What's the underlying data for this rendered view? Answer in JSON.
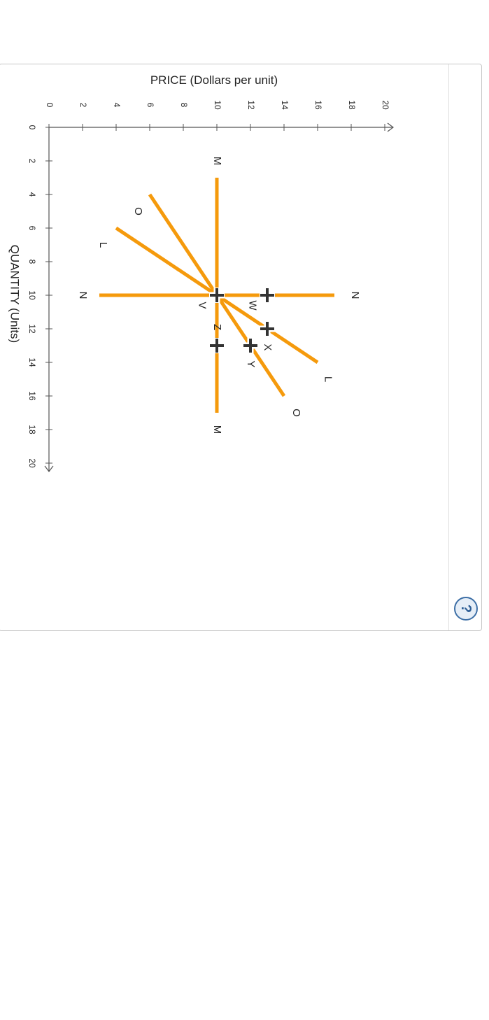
{
  "chart_data": {
    "type": "line",
    "xlabel": "QUANTITY (Units)",
    "ylabel": "PRICE (Dollars per unit)",
    "xlim": [
      0,
      20
    ],
    "ylim": [
      0,
      20
    ],
    "xticks": [
      0,
      2,
      4,
      6,
      8,
      10,
      12,
      14,
      16,
      18,
      20
    ],
    "yticks": [
      0,
      2,
      4,
      6,
      8,
      10,
      12,
      14,
      16,
      18,
      20
    ],
    "grid": false,
    "line_color": "#f59a0c",
    "series": [
      {
        "name": "L",
        "x": [
          6,
          10,
          14
        ],
        "y": [
          4,
          10,
          16
        ],
        "labels": [
          {
            "text": "L",
            "x": 7,
            "y": 3.2
          },
          {
            "text": "L",
            "x": 15,
            "y": 16.6
          }
        ]
      },
      {
        "name": "O",
        "x": [
          4,
          10,
          16
        ],
        "y": [
          6,
          10,
          14
        ],
        "labels": [
          {
            "text": "O",
            "x": 5,
            "y": 5.3
          },
          {
            "text": "O",
            "x": 17,
            "y": 14.7
          }
        ]
      },
      {
        "name": "M",
        "x": [
          3,
          17
        ],
        "y": [
          10,
          10
        ],
        "labels": [
          {
            "text": "M",
            "x": 2,
            "y": 10
          },
          {
            "text": "M",
            "x": 18,
            "y": 10
          }
        ]
      },
      {
        "name": "N",
        "x": [
          10,
          10
        ],
        "y": [
          3,
          17
        ],
        "labels": [
          {
            "text": "N",
            "x": 10,
            "y": 2
          },
          {
            "text": "N",
            "x": 10,
            "y": 18.2
          }
        ]
      }
    ],
    "points": [
      {
        "name": "V",
        "x": 10,
        "y": 10,
        "label_dx": -0.9,
        "label_dy": 0.6
      },
      {
        "name": "W",
        "x": 10,
        "y": 13,
        "label_dx": -0.9,
        "label_dy": 0.6
      },
      {
        "name": "X",
        "x": 12,
        "y": 13,
        "label_dx": 0,
        "label_dy": 1.1
      },
      {
        "name": "Y",
        "x": 13,
        "y": 12,
        "label_dx": 0,
        "label_dy": 1.1
      },
      {
        "name": "Z",
        "x": 13,
        "y": 10,
        "label_dx": 0,
        "label_dy": -1.1
      }
    ],
    "point_color": "#333333"
  },
  "help": {
    "icon": "question-mark-icon",
    "label": "?"
  }
}
